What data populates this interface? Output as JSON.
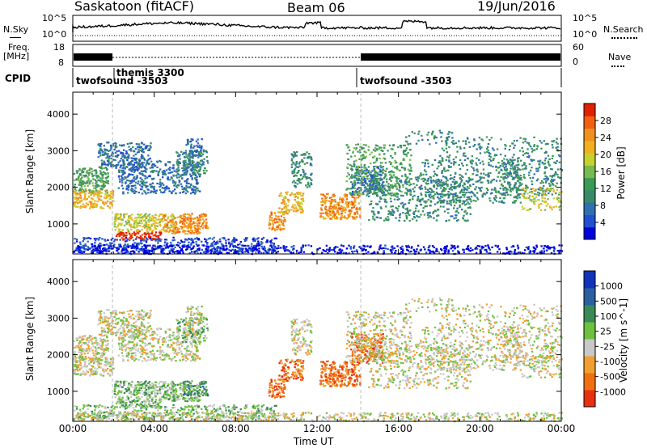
{
  "header": {
    "station": "Saskatoon (fitACF)",
    "beam": "Beam 06",
    "date": "19/Jun/2016"
  },
  "nsky_panel": {
    "left_label": "N.Sky",
    "right_label": "N.Search",
    "left_ticks": [
      "10^5",
      "10^0"
    ],
    "right_ticks": [
      "10^5",
      "10^0"
    ]
  },
  "freq_panel": {
    "left_label": "Freq.",
    "left_unit": "[MHz]",
    "right_label": "Nave",
    "left_ticks": [
      "18",
      "8"
    ],
    "right_ticks": [
      "60",
      "0"
    ]
  },
  "cpid_panel": {
    "label": "CPID",
    "segments": [
      {
        "name": "twofsound -3503",
        "start_h": 0
      },
      {
        "name": "themis 3300",
        "start_h": 1.95
      },
      {
        "name": "twofsound -3503",
        "start_h": 14.15
      }
    ]
  },
  "time_axis": {
    "label": "Time UT",
    "ticks": [
      "00:00",
      "04:00",
      "08:00",
      "12:00",
      "16:00",
      "20:00",
      "00:00"
    ]
  },
  "colors": {
    "power": [
      "#0000dd",
      "#2050d0",
      "#306fb0",
      "#3a8a6a",
      "#3b9a55",
      "#7ab850",
      "#c8d030",
      "#f0b020",
      "#f09020",
      "#f06010",
      "#e02000"
    ],
    "velocity": [
      "#1133bb",
      "#2a60a0",
      "#3a8a55",
      "#70c040",
      "#c8c8c8",
      "#f0a030",
      "#f07010",
      "#e83010"
    ]
  },
  "chart_data": [
    {
      "type": "heatmap",
      "name": "power",
      "xlabel": "Time UT",
      "ylabel": "Slant Range [km]",
      "xlim": [
        0,
        24
      ],
      "ylim": [
        180,
        4600
      ],
      "yticks": [
        1000,
        2000,
        3000,
        4000
      ],
      "colorbar": {
        "label": "Power [dB]",
        "ticks": [
          4,
          8,
          12,
          16,
          20,
          24,
          28
        ]
      },
      "grid": false
    },
    {
      "type": "heatmap",
      "name": "velocity",
      "xlabel": "Time UT",
      "ylabel": "Slant Range [km]",
      "xlim": [
        0,
        24
      ],
      "ylim": [
        180,
        4600
      ],
      "yticks": [
        1000,
        2000,
        3000,
        4000
      ],
      "colorbar": {
        "label": "Velocity [m s^-1]",
        "ticks": [
          1000,
          500,
          100,
          25,
          -25,
          -100,
          -500,
          -1000
        ]
      },
      "grid": false
    }
  ]
}
